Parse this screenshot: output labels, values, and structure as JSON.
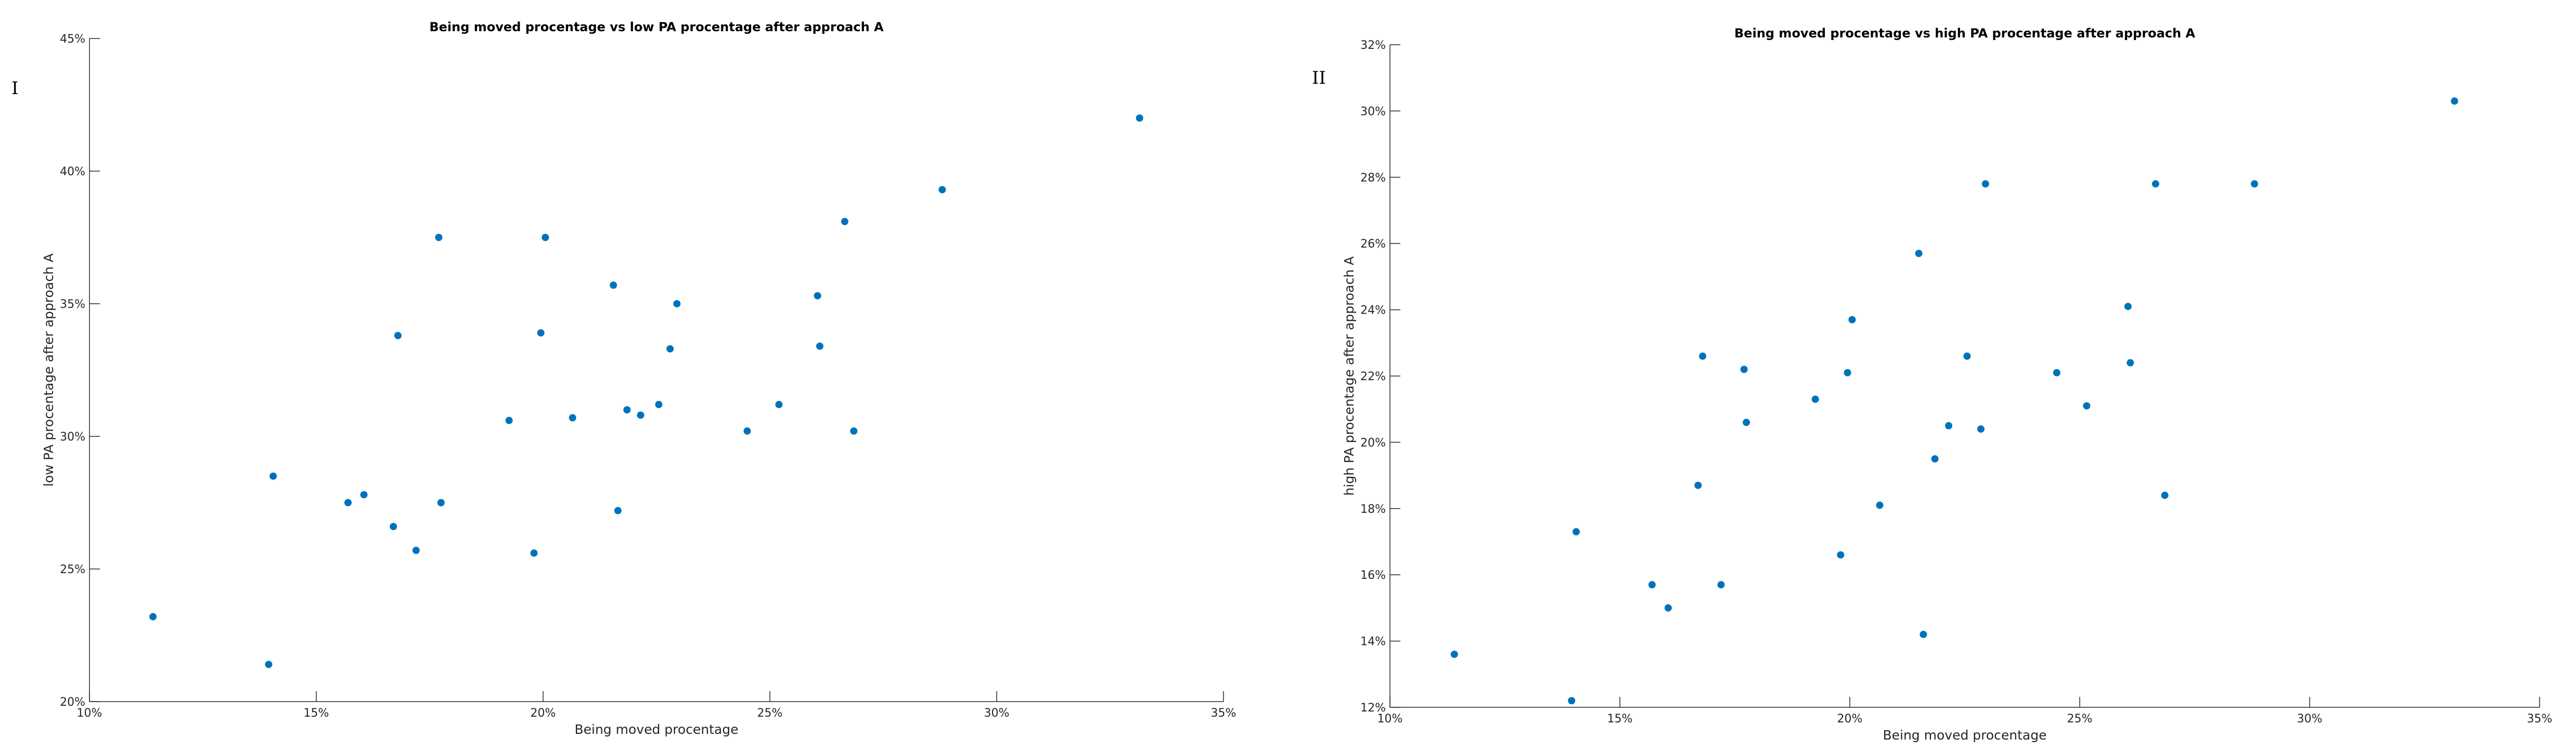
{
  "panel_labels": [
    "I",
    "II"
  ],
  "chart_data": [
    {
      "type": "scatter",
      "title": "Being moved procentage vs low PA procentage after approach A",
      "xlabel": "Being moved procentage",
      "ylabel": "low PA procentage after approach A",
      "xlim": [
        10,
        35
      ],
      "ylim": [
        20,
        45
      ],
      "xticks": [
        10,
        15,
        20,
        25,
        30,
        35
      ],
      "yticks": [
        20,
        25,
        30,
        35,
        40,
        45
      ],
      "xtick_labels": [
        "10%",
        "15%",
        "20%",
        "25%",
        "30%",
        "35%"
      ],
      "ytick_labels": [
        "20%",
        "25%",
        "30%",
        "35%",
        "40%",
        "45%"
      ],
      "grid": false,
      "marker_color": "#0072BD",
      "x": [
        11.4,
        13.95,
        14.05,
        15.7,
        16.05,
        16.7,
        16.8,
        17.2,
        17.7,
        17.75,
        19.25,
        19.8,
        19.95,
        20.05,
        20.65,
        21.55,
        21.65,
        21.85,
        22.15,
        22.55,
        22.8,
        22.95,
        24.5,
        25.2,
        26.05,
        26.1,
        26.65,
        26.85,
        28.8,
        33.15
      ],
      "y": [
        23.2,
        21.4,
        28.5,
        27.5,
        27.8,
        26.6,
        33.8,
        25.7,
        37.5,
        27.5,
        30.6,
        25.6,
        33.9,
        37.5,
        30.7,
        35.7,
        27.2,
        31.0,
        30.8,
        31.2,
        33.3,
        35.0,
        30.2,
        31.2,
        35.3,
        33.4,
        38.1,
        30.2,
        39.3,
        42.0
      ]
    },
    {
      "type": "scatter",
      "title": "Being moved procentage vs high PA procentage after approach A",
      "xlabel": "Being moved procentage",
      "ylabel": "high PA procentage after approach A",
      "xlim": [
        10,
        35
      ],
      "ylim": [
        12,
        32
      ],
      "xticks": [
        10,
        15,
        20,
        25,
        30,
        35
      ],
      "yticks": [
        12,
        14,
        16,
        18,
        20,
        22,
        24,
        26,
        28,
        30,
        32
      ],
      "xtick_labels": [
        "10%",
        "15%",
        "20%",
        "25%",
        "30%",
        "35%"
      ],
      "ytick_labels": [
        "12%",
        "14%",
        "16%",
        "18%",
        "20%",
        "22%",
        "24%",
        "26%",
        "28%",
        "30%",
        "32%"
      ],
      "grid": false,
      "marker_color": "#0072BD",
      "x": [
        11.4,
        13.95,
        14.05,
        15.7,
        16.05,
        16.7,
        16.8,
        17.2,
        17.7,
        17.75,
        19.25,
        19.8,
        19.95,
        20.05,
        20.65,
        21.5,
        21.6,
        21.85,
        22.15,
        22.55,
        22.85,
        22.95,
        24.5,
        25.15,
        26.05,
        26.1,
        26.65,
        26.85,
        28.8,
        33.15
      ],
      "y": [
        13.6,
        12.2,
        17.3,
        15.7,
        15.0,
        18.7,
        22.6,
        15.7,
        22.2,
        20.6,
        21.3,
        16.6,
        22.1,
        23.7,
        18.1,
        25.7,
        14.2,
        19.5,
        20.5,
        22.6,
        20.4,
        27.8,
        22.1,
        21.1,
        24.1,
        22.4,
        27.8,
        18.4,
        27.8,
        30.3
      ]
    }
  ]
}
